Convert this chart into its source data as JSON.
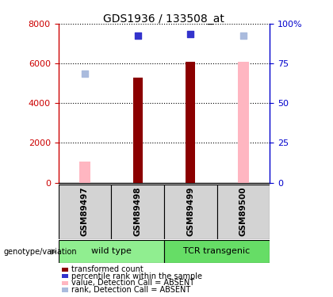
{
  "title": "GDS1936 / 133508_at",
  "samples": [
    "GSM89497",
    "GSM89498",
    "GSM89499",
    "GSM89500"
  ],
  "groups": [
    {
      "name": "wild type",
      "color": "#90EE90"
    },
    {
      "name": "TCR transgenic",
      "color": "#66DD66"
    }
  ],
  "bar_values": [
    null,
    5300,
    6100,
    null
  ],
  "bar_color": "#8B0000",
  "absent_bar_values": [
    1050,
    null,
    null,
    6100
  ],
  "absent_bar_color": "#FFB6C1",
  "blue_square_values": [
    null,
    7400,
    7500,
    null
  ],
  "absent_square_values": [
    5500,
    null,
    null,
    7400
  ],
  "blue_square_color": "#3333CC",
  "absent_square_color": "#AABBDD",
  "ylim_left": [
    0,
    8000
  ],
  "ylim_right": [
    0,
    100
  ],
  "yticks_left": [
    0,
    2000,
    4000,
    6000,
    8000
  ],
  "yticks_right": [
    0,
    25,
    50,
    75,
    100
  ],
  "ytick_labels_right": [
    "0",
    "25",
    "50",
    "75",
    "100%"
  ],
  "left_axis_color": "#CC0000",
  "right_axis_color": "#0000CC",
  "sample_area_bg": "#D3D3D3",
  "legend_items": [
    {
      "color": "#8B0000",
      "label": "transformed count"
    },
    {
      "color": "#3333CC",
      "label": "percentile rank within the sample"
    },
    {
      "color": "#FFB6C1",
      "label": "value, Detection Call = ABSENT"
    },
    {
      "color": "#AABBDD",
      "label": "rank, Detection Call = ABSENT"
    }
  ]
}
